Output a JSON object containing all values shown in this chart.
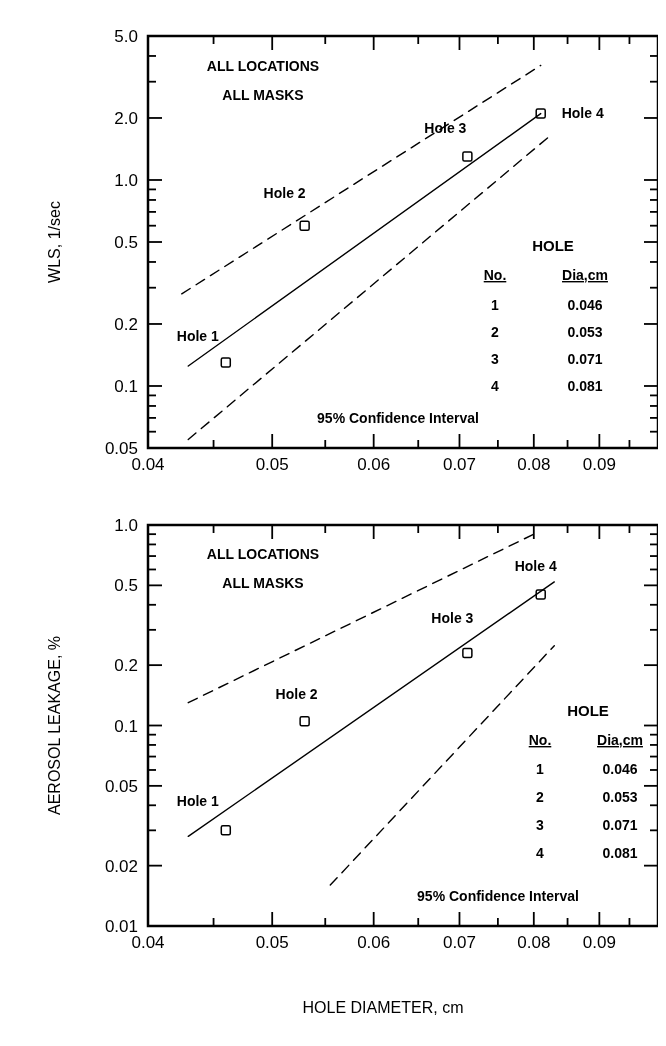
{
  "chart_data": [
    {
      "type": "scatter",
      "ylabel": "WLS, 1/sec",
      "log": "xy",
      "grid": false,
      "xlim": [
        0.04,
        0.1
      ],
      "xticks": [
        0.04,
        {
          "value": 0.045,
          "label": null
        },
        0.05,
        {
          "value": 0.055,
          "label": null
        },
        0.06,
        {
          "value": 0.065,
          "label": null
        },
        0.07,
        {
          "value": 0.075,
          "label": null
        },
        0.08,
        {
          "value": 0.085,
          "label": null
        },
        0.09,
        {
          "value": 0.095,
          "label": null
        }
      ],
      "ylim": [
        0.05,
        5
      ],
      "yticks": [
        0.05,
        {
          "value": 0.06,
          "label": null
        },
        {
          "value": 0.07,
          "label": null
        },
        {
          "value": 0.08,
          "label": null
        },
        {
          "value": 0.09,
          "label": null
        },
        0.1,
        0.2,
        {
          "value": 0.3,
          "label": null
        },
        {
          "value": 0.4,
          "label": null
        },
        0.5,
        {
          "value": 0.6,
          "label": null
        },
        {
          "value": 0.7,
          "label": null
        },
        {
          "value": 0.8,
          "label": null
        },
        {
          "value": 0.9,
          "label": null
        },
        {
          "value": 1,
          "label": "1.0"
        },
        {
          "value": 2,
          "label": "2.0"
        },
        {
          "value": 3,
          "label": null
        },
        {
          "value": 4,
          "label": null
        },
        {
          "value": 5,
          "label": "5.0"
        }
      ],
      "series": [
        {
          "marker": "square",
          "color": "#000000",
          "x": [
            0.046,
            0.053,
            0.071,
            0.081
          ],
          "values": [
            0.13,
            0.6,
            1.3,
            2.1
          ]
        },
        {
          "type": "line",
          "line_style": "solid",
          "color": "#000000",
          "x": [
            0.043,
            0.081
          ],
          "values": [
            0.125,
            2.1
          ]
        },
        {
          "type": "line",
          "line_style": "dashed",
          "color": "#000000",
          "x": [
            0.0425,
            0.081
          ],
          "values": [
            0.28,
            3.6
          ]
        },
        {
          "type": "line",
          "line_style": "dashed",
          "color": "#000000",
          "x": [
            0.043,
            0.082
          ],
          "values": [
            0.055,
            1.6
          ]
        }
      ],
      "annotations": [
        "ALL LOCATIONS",
        "ALL MASKS",
        "95% Confidence Interval",
        "HOLE",
        "No.",
        "Dia,cm",
        "1",
        "0.046",
        "2",
        "0.053",
        "3",
        "0.071",
        "4",
        "0.081",
        {
          "text": "Hole 1",
          "x": 0.046,
          "y": 0.13
        },
        {
          "text": "Hole 2",
          "x": 0.053,
          "y": 0.6
        },
        {
          "text": "Hole 3",
          "x": 0.071,
          "y": 1.3
        },
        {
          "text": "Hole 4",
          "x": 0.081,
          "y": 2.1
        }
      ]
    },
    {
      "type": "scatter",
      "ylabel": "AEROSOL LEAKAGE, %",
      "xlabel": "HOLE DIAMETER, cm",
      "log": "xy",
      "grid": false,
      "xlim": [
        0.04,
        0.1
      ],
      "xticks": [
        0.04,
        {
          "value": 0.045,
          "label": null
        },
        0.05,
        {
          "value": 0.055,
          "label": null
        },
        0.06,
        {
          "value": 0.065,
          "label": null
        },
        0.07,
        {
          "value": 0.075,
          "label": null
        },
        0.08,
        {
          "value": 0.085,
          "label": null
        },
        0.09,
        {
          "value": 0.095,
          "label": null
        }
      ],
      "ylim": [
        0.01,
        1
      ],
      "yticks": [
        0.01,
        0.02,
        {
          "value": 0.03,
          "label": null
        },
        {
          "value": 0.04,
          "label": null
        },
        0.05,
        {
          "value": 0.06,
          "label": null
        },
        {
          "value": 0.07,
          "label": null
        },
        {
          "value": 0.08,
          "label": null
        },
        {
          "value": 0.09,
          "label": null
        },
        0.1,
        0.2,
        {
          "value": 0.3,
          "label": null
        },
        {
          "value": 0.4,
          "label": null
        },
        0.5,
        {
          "value": 0.6,
          "label": null
        },
        {
          "value": 0.7,
          "label": null
        },
        {
          "value": 0.8,
          "label": null
        },
        {
          "value": 0.9,
          "label": null
        },
        {
          "value": 1,
          "label": "1.0"
        }
      ],
      "series": [
        {
          "marker": "square",
          "color": "#000000",
          "x": [
            0.046,
            0.053,
            0.071,
            0.081
          ],
          "values": [
            0.03,
            0.105,
            0.23,
            0.45
          ]
        },
        {
          "type": "line",
          "line_style": "solid",
          "color": "#000000",
          "x": [
            0.043,
            0.083
          ],
          "values": [
            0.028,
            0.52
          ]
        },
        {
          "type": "line",
          "line_style": "dashed",
          "color": "#000000",
          "x": [
            0.043,
            0.08
          ],
          "values": [
            0.13,
            0.9
          ]
        },
        {
          "type": "line",
          "line_style": "dashed",
          "color": "#000000",
          "x": [
            0.0555,
            0.083
          ],
          "values": [
            0.016,
            0.25
          ]
        }
      ],
      "annotations": [
        "ALL LOCATIONS",
        "ALL MASKS",
        "95% Confidence Interval",
        "HOLE",
        "No.",
        "Dia,cm",
        "1",
        "0.046",
        "2",
        "0.053",
        "3",
        "0.071",
        "4",
        "0.081",
        {
          "text": "Hole 1",
          "x": 0.046,
          "y": 0.03
        },
        {
          "text": "Hole 2",
          "x": 0.053,
          "y": 0.105
        },
        {
          "text": "Hole 3",
          "x": 0.071,
          "y": 0.23
        },
        {
          "text": "Hole 4",
          "x": 0.081,
          "y": 0.45
        }
      ]
    }
  ]
}
